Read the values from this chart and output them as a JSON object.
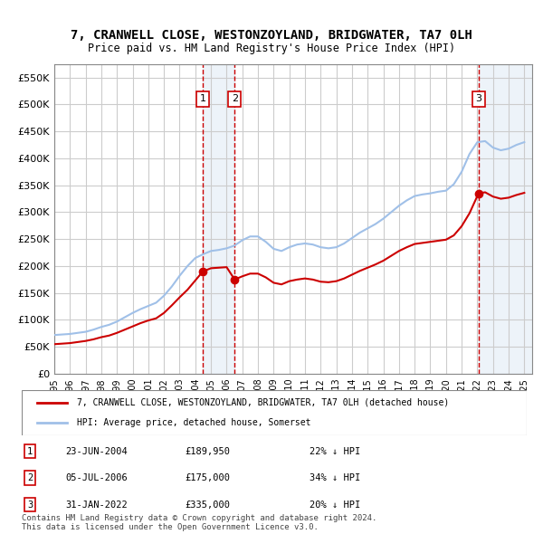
{
  "title_line1": "7, CRANWELL CLOSE, WESTONZOYLAND, BRIDGWATER, TA7 0LH",
  "title_line2": "Price paid vs. HM Land Registry's House Price Index (HPI)",
  "ylabel": "",
  "background_color": "#ffffff",
  "plot_bg_color": "#ffffff",
  "grid_color": "#cccccc",
  "hpi_color": "#a0c0e8",
  "sale_color": "#cc0000",
  "sale_marker_color": "#cc0000",
  "highlight_color": "#dce9f5",
  "ylim": [
    0,
    575000
  ],
  "yticks": [
    0,
    50000,
    100000,
    150000,
    200000,
    250000,
    300000,
    350000,
    400000,
    450000,
    500000,
    550000
  ],
  "xlim_start": 1995.0,
  "xlim_end": 2025.5,
  "legend_label_red": "7, CRANWELL CLOSE, WESTONZOYLAND, BRIDGWATER, TA7 0LH (detached house)",
  "legend_label_blue": "HPI: Average price, detached house, Somerset",
  "footer_line1": "Contains HM Land Registry data © Crown copyright and database right 2024.",
  "footer_line2": "This data is licensed under the Open Government Licence v3.0.",
  "transactions": [
    {
      "num": 1,
      "date": "23-JUN-2004",
      "price": 189950,
      "pct": "22%",
      "x": 2004.48
    },
    {
      "num": 2,
      "date": "05-JUL-2006",
      "price": 175000,
      "pct": "34%",
      "x": 2006.51
    },
    {
      "num": 3,
      "date": "31-JAN-2022",
      "price": 335000,
      "pct": "20%",
      "x": 2022.08
    }
  ],
  "hpi_data": {
    "years": [
      1995,
      1995.5,
      1996,
      1996.5,
      1997,
      1997.5,
      1998,
      1998.5,
      1999,
      1999.5,
      2000,
      2000.5,
      2001,
      2001.5,
      2002,
      2002.5,
      2003,
      2003.5,
      2004,
      2004.5,
      2005,
      2005.5,
      2006,
      2006.5,
      2007,
      2007.5,
      2008,
      2008.5,
      2009,
      2009.5,
      2010,
      2010.5,
      2011,
      2011.5,
      2012,
      2012.5,
      2013,
      2013.5,
      2014,
      2014.5,
      2015,
      2015.5,
      2016,
      2016.5,
      2017,
      2017.5,
      2018,
      2018.5,
      2019,
      2019.5,
      2020,
      2020.5,
      2021,
      2021.5,
      2022,
      2022.5,
      2023,
      2023.5,
      2024,
      2024.5,
      2025
    ],
    "values": [
      72000,
      73000,
      74000,
      76000,
      78000,
      82000,
      87000,
      91000,
      97000,
      105000,
      113000,
      120000,
      126000,
      132000,
      145000,
      162000,
      182000,
      200000,
      215000,
      222000,
      228000,
      230000,
      233000,
      238000,
      248000,
      255000,
      255000,
      245000,
      232000,
      228000,
      235000,
      240000,
      242000,
      240000,
      235000,
      233000,
      235000,
      242000,
      252000,
      262000,
      270000,
      278000,
      288000,
      300000,
      312000,
      322000,
      330000,
      333000,
      335000,
      338000,
      340000,
      352000,
      375000,
      408000,
      430000,
      432000,
      420000,
      415000,
      418000,
      425000,
      430000
    ]
  },
  "sale_data_x": [
    1995.0,
    1995.5,
    1996.0,
    1996.5,
    1997.0,
    1997.5,
    1998.0,
    1998.5,
    1999.0,
    1999.5,
    2000.0,
    2000.5,
    2001.0,
    2001.5,
    2002.0,
    2002.5,
    2003.0,
    2003.5,
    2004.48,
    2004.48,
    2005.0,
    2005.5,
    2006.0,
    2006.51,
    2006.51,
    2007.0,
    2007.5,
    2008.0,
    2008.5,
    2009.0,
    2009.5,
    2010.0,
    2010.5,
    2011.0,
    2011.5,
    2012.0,
    2012.5,
    2013.0,
    2013.5,
    2014.0,
    2014.5,
    2015.0,
    2015.5,
    2016.0,
    2016.5,
    2017.0,
    2017.5,
    2018.0,
    2018.5,
    2019.0,
    2019.5,
    2020.0,
    2020.5,
    2021.0,
    2021.5,
    2022.08,
    2022.08,
    2022.5,
    2023.0,
    2023.5,
    2024.0,
    2024.5,
    2025.0
  ],
  "sale_data_y": [
    55000,
    56000,
    57000,
    59000,
    61000,
    64000,
    68000,
    71000,
    76000,
    82000,
    88000,
    94000,
    99000,
    103000,
    113000,
    127000,
    142000,
    156000,
    189950,
    189950,
    196000,
    197000,
    198000,
    175000,
    175000,
    181000,
    186000,
    186000,
    179000,
    169000,
    166000,
    172000,
    175000,
    177000,
    175000,
    171000,
    170000,
    172000,
    177000,
    184000,
    191000,
    197000,
    203000,
    210000,
    219000,
    228000,
    235000,
    241000,
    243000,
    245000,
    247000,
    249000,
    257000,
    274000,
    298000,
    335000,
    335000,
    337000,
    329000,
    325000,
    327000,
    332000,
    336000
  ]
}
